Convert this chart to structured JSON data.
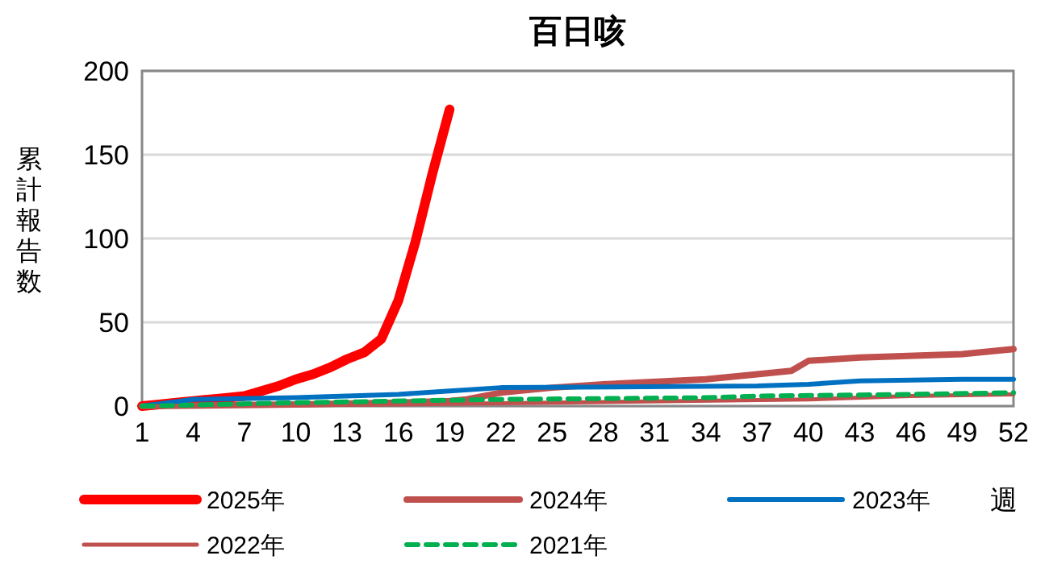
{
  "chart_data": {
    "type": "line",
    "title": "百日咳",
    "xlabel": "週",
    "ylabel": "累計報告数",
    "xlim": [
      1,
      52
    ],
    "xticks": [
      1,
      4,
      7,
      10,
      13,
      16,
      19,
      22,
      25,
      28,
      31,
      34,
      37,
      40,
      43,
      46,
      49,
      52
    ],
    "ylim": [
      0,
      200
    ],
    "yticks": [
      0,
      50,
      100,
      150,
      200
    ],
    "grid": "y",
    "legend": "bottom",
    "series": [
      {
        "name": "2025年",
        "color": "#ff0000",
        "x": [
          1,
          2,
          3,
          4,
          5,
          6,
          7,
          8,
          9,
          10,
          11,
          12,
          13,
          14,
          15,
          16,
          17,
          18,
          19
        ],
        "values": [
          0,
          1,
          2,
          3,
          4,
          5,
          6,
          9,
          12,
          16,
          19,
          23,
          28,
          32,
          40,
          63,
          98,
          139,
          177
        ]
      },
      {
        "name": "2024年",
        "color": "#c0504d",
        "x": [
          1,
          10,
          16,
          19,
          20,
          22,
          25,
          28,
          34,
          37,
          39,
          40,
          43,
          49,
          52
        ],
        "values": [
          0,
          1,
          2,
          3,
          4,
          8,
          11,
          13,
          16,
          19,
          21,
          27,
          29,
          31,
          34
        ]
      },
      {
        "name": "2023年",
        "color": "#0070c0",
        "x": [
          1,
          4,
          10,
          16,
          19,
          22,
          37,
          40,
          43,
          49,
          52
        ],
        "values": [
          0,
          4,
          5,
          7,
          9,
          11,
          12,
          13,
          15,
          16,
          16
        ]
      },
      {
        "name": "2022年",
        "color": "#c0504d",
        "x": [
          1,
          16,
          25,
          40,
          46,
          52
        ],
        "values": [
          0,
          1,
          2,
          4,
          6,
          7
        ]
      },
      {
        "name": "2021年",
        "color": "#00b050",
        "line_style": "dashed",
        "x": [
          1,
          10,
          22,
          34,
          37,
          46,
          52
        ],
        "values": [
          0,
          2,
          4,
          5,
          6,
          7,
          8
        ]
      }
    ]
  }
}
